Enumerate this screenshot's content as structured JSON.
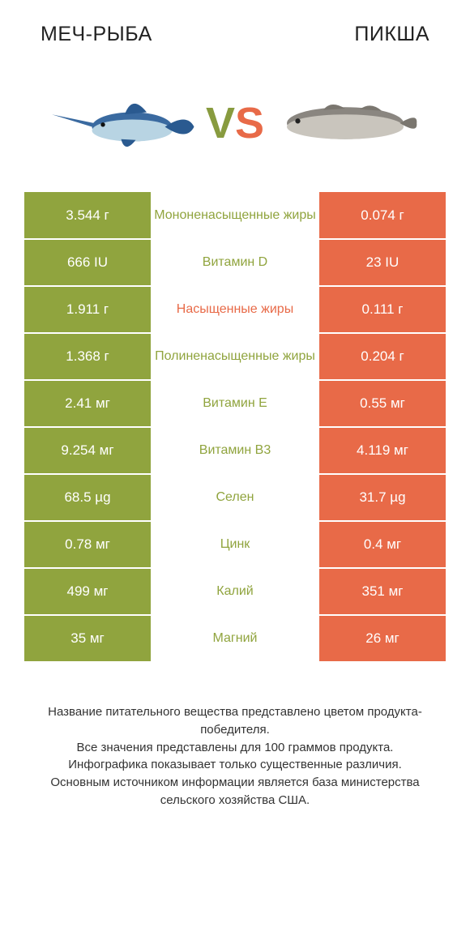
{
  "header": {
    "left_title": "МЕЧ-РЫБА",
    "right_title": "ПИКША"
  },
  "vs": {
    "v": "V",
    "s": "S"
  },
  "colors": {
    "left_bg": "#90aింబ43e",
    "right_bg": "#e86a48",
    "left_text_hex": "#90a43e",
    "right_text_hex": "#e86a48",
    "neutral_text": "#333333",
    "white": "#ffffff"
  },
  "left_bg": "#90a43e",
  "right_bg": "#e86a48",
  "rows": [
    {
      "left": "3.544 г",
      "mid": "Мононенасыщенные жиры",
      "right": "0.074 г",
      "winner": "left"
    },
    {
      "left": "666 IU",
      "mid": "Витамин D",
      "right": "23 IU",
      "winner": "left"
    },
    {
      "left": "1.911 г",
      "mid": "Насыщенные жиры",
      "right": "0.111 г",
      "winner": "right"
    },
    {
      "left": "1.368 г",
      "mid": "Полиненасыщенные жиры",
      "right": "0.204 г",
      "winner": "left"
    },
    {
      "left": "2.41 мг",
      "mid": "Витамин E",
      "right": "0.55 мг",
      "winner": "left"
    },
    {
      "left": "9.254 мг",
      "mid": "Витамин B3",
      "right": "4.119 мг",
      "winner": "left"
    },
    {
      "left": "68.5 µg",
      "mid": "Селен",
      "right": "31.7 µg",
      "winner": "left"
    },
    {
      "left": "0.78 мг",
      "mid": "Цинк",
      "right": "0.4 мг",
      "winner": "left"
    },
    {
      "left": "499 мг",
      "mid": "Калий",
      "right": "351 мг",
      "winner": "left"
    },
    {
      "left": "35 мг",
      "mid": "Магний",
      "right": "26 мг",
      "winner": "left"
    }
  ],
  "footer_lines": [
    "Название питательного вещества представлено цветом продукта-победителя.",
    "Все значения представлены для 100 граммов продукта.",
    "Инфографика показывает только существенные различия.",
    "Основным источником информации является база министерства сельского хозяйства США."
  ]
}
